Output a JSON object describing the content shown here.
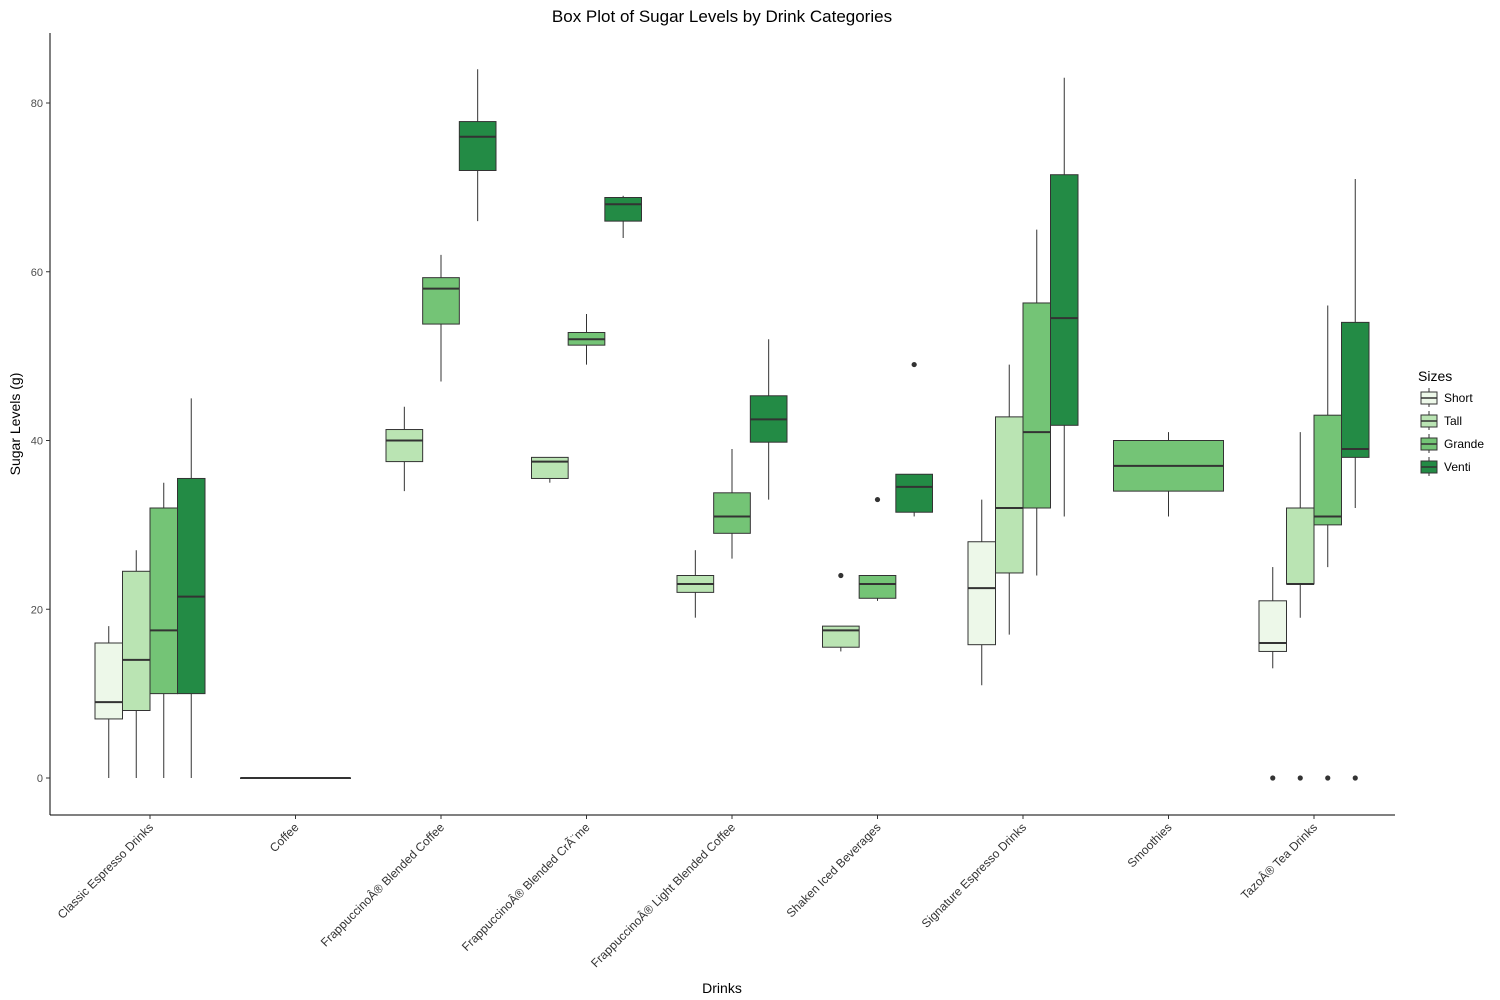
{
  "chart_data": {
    "type": "boxplot",
    "title": "Box Plot of Sugar Levels by Drink Categories",
    "xlabel": "Drinks",
    "ylabel": "Sugar Levels (g)",
    "ylim": [
      -4,
      88
    ],
    "yticks": [
      0,
      20,
      40,
      60,
      80
    ],
    "ytick_labels": [
      "0",
      "20",
      "40",
      "60",
      "80"
    ],
    "categories": [
      "Classic Espresso Drinks",
      "Coffee",
      "FrappuccinoÂ® Blended Coffee",
      "FrappuccinoÂ® Blended CrÃ¨me",
      "FrappuccinoÂ® Light Blended Coffee",
      "Shaken Iced Beverages",
      "Signature Espresso Drinks",
      "Smoothies",
      "TazoÂ® Tea Drinks"
    ],
    "legend": {
      "title": "Sizes",
      "position": "right",
      "entries": [
        {
          "name": "Short",
          "color": "#edf8e9"
        },
        {
          "name": "Tall",
          "color": "#bae4b3"
        },
        {
          "name": "Grande",
          "color": "#74c476"
        },
        {
          "name": "Venti",
          "color": "#238b45"
        }
      ]
    },
    "groups": [
      {
        "category": "Classic Espresso Drinks",
        "slots": 4,
        "boxes": [
          {
            "size": "Short",
            "slot": 0,
            "whisker_low": 0,
            "q1": 7,
            "median": 9,
            "q3": 16,
            "whisker_high": 18,
            "outliers": []
          },
          {
            "size": "Tall",
            "slot": 1,
            "whisker_low": 0,
            "q1": 8,
            "median": 14,
            "q3": 24.5,
            "whisker_high": 27,
            "outliers": []
          },
          {
            "size": "Grande",
            "slot": 2,
            "whisker_low": 0,
            "q1": 10,
            "median": 17.5,
            "q3": 32,
            "whisker_high": 35,
            "outliers": []
          },
          {
            "size": "Venti",
            "slot": 3,
            "whisker_low": 0,
            "q1": 10,
            "median": 21.5,
            "q3": 35.5,
            "whisker_high": 45,
            "outliers": []
          }
        ]
      },
      {
        "category": "Coffee",
        "slots": 1,
        "boxes": [
          {
            "size": "Short",
            "slot": 0,
            "whisker_low": 0,
            "q1": 0,
            "median": 0,
            "q3": 0,
            "whisker_high": 0,
            "outliers": []
          }
        ]
      },
      {
        "category": "FrappuccinoÂ® Blended Coffee",
        "slots": 3,
        "boxes": [
          {
            "size": "Tall",
            "slot": 0,
            "whisker_low": 34,
            "q1": 37.5,
            "median": 40,
            "q3": 41.3,
            "whisker_high": 44,
            "outliers": []
          },
          {
            "size": "Grande",
            "slot": 1,
            "whisker_low": 47,
            "q1": 53.8,
            "median": 58,
            "q3": 59.3,
            "whisker_high": 62,
            "outliers": []
          },
          {
            "size": "Venti",
            "slot": 2,
            "whisker_low": 66,
            "q1": 72,
            "median": 76,
            "q3": 77.8,
            "whisker_high": 84,
            "outliers": []
          }
        ]
      },
      {
        "category": "FrappuccinoÂ® Blended CrÃ¨me",
        "slots": 3,
        "boxes": [
          {
            "size": "Tall",
            "slot": 0,
            "whisker_low": 35,
            "q1": 35.5,
            "median": 37.5,
            "q3": 38,
            "whisker_high": 38,
            "outliers": []
          },
          {
            "size": "Grande",
            "slot": 1,
            "whisker_low": 49,
            "q1": 51.3,
            "median": 52,
            "q3": 52.8,
            "whisker_high": 55,
            "outliers": []
          },
          {
            "size": "Venti",
            "slot": 2,
            "whisker_low": 64,
            "q1": 66,
            "median": 68,
            "q3": 68.8,
            "whisker_high": 69,
            "outliers": []
          }
        ]
      },
      {
        "category": "FrappuccinoÂ® Light Blended Coffee",
        "slots": 3,
        "boxes": [
          {
            "size": "Tall",
            "slot": 0,
            "whisker_low": 19,
            "q1": 22,
            "median": 23,
            "q3": 24,
            "whisker_high": 27,
            "outliers": []
          },
          {
            "size": "Grande",
            "slot": 1,
            "whisker_low": 26,
            "q1": 29,
            "median": 31,
            "q3": 33.8,
            "whisker_high": 39,
            "outliers": []
          },
          {
            "size": "Venti",
            "slot": 2,
            "whisker_low": 33,
            "q1": 39.8,
            "median": 42.5,
            "q3": 45.3,
            "whisker_high": 52,
            "outliers": []
          }
        ]
      },
      {
        "category": "Shaken Iced Beverages",
        "slots": 3,
        "boxes": [
          {
            "size": "Tall",
            "slot": 0,
            "whisker_low": 15,
            "q1": 15.5,
            "median": 17.5,
            "q3": 18,
            "whisker_high": 18,
            "outliers": [
              24
            ]
          },
          {
            "size": "Grande",
            "slot": 1,
            "whisker_low": 21,
            "q1": 21.3,
            "median": 23,
            "q3": 24,
            "whisker_high": 24,
            "outliers": [
              33
            ]
          },
          {
            "size": "Venti",
            "slot": 2,
            "whisker_low": 31,
            "q1": 31.5,
            "median": 34.5,
            "q3": 36,
            "whisker_high": 36,
            "outliers": [
              49
            ]
          }
        ]
      },
      {
        "category": "Signature Espresso Drinks",
        "slots": 4,
        "boxes": [
          {
            "size": "Short",
            "slot": 0,
            "whisker_low": 11,
            "q1": 15.8,
            "median": 22.5,
            "q3": 28,
            "whisker_high": 33,
            "outliers": []
          },
          {
            "size": "Tall",
            "slot": 1,
            "whisker_low": 17,
            "q1": 24.3,
            "median": 32,
            "q3": 42.8,
            "whisker_high": 49,
            "outliers": []
          },
          {
            "size": "Grande",
            "slot": 2,
            "whisker_low": 24,
            "q1": 32,
            "median": 41,
            "q3": 56.3,
            "whisker_high": 65,
            "outliers": []
          },
          {
            "size": "Venti",
            "slot": 3,
            "whisker_low": 31,
            "q1": 41.8,
            "median": 54.5,
            "q3": 71.5,
            "whisker_high": 83,
            "outliers": []
          }
        ]
      },
      {
        "category": "Smoothies",
        "slots": 1,
        "boxes": [
          {
            "size": "Grande",
            "slot": 0,
            "whisker_low": 31,
            "q1": 34,
            "median": 37,
            "q3": 40,
            "whisker_high": 41,
            "outliers": []
          }
        ]
      },
      {
        "category": "TazoÂ® Tea Drinks",
        "slots": 4,
        "boxes": [
          {
            "size": "Short",
            "slot": 0,
            "whisker_low": 13,
            "q1": 15,
            "median": 16,
            "q3": 21,
            "whisker_high": 25,
            "outliers": [
              0
            ]
          },
          {
            "size": "Tall",
            "slot": 1,
            "whisker_low": 19,
            "q1": 23,
            "median": 23,
            "q3": 32,
            "whisker_high": 41,
            "outliers": [
              0
            ]
          },
          {
            "size": "Grande",
            "slot": 2,
            "whisker_low": 25,
            "q1": 30,
            "median": 31,
            "q3": 43,
            "whisker_high": 56,
            "outliers": [
              0
            ]
          },
          {
            "size": "Venti",
            "slot": 3,
            "whisker_low": 32,
            "q1": 38,
            "median": 39,
            "q3": 54,
            "whisker_high": 71,
            "outliers": [
              0
            ]
          }
        ]
      }
    ]
  }
}
